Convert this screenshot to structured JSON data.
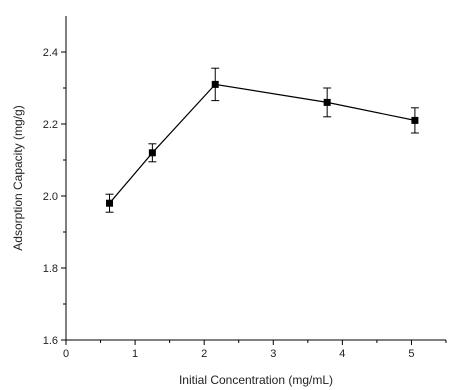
{
  "chart_data": {
    "type": "line",
    "title": "",
    "xlabel": "Initial Concentration (mg/mL)",
    "ylabel": "Adsorption Capacity (mg/g)",
    "xlim": [
      0,
      5.5
    ],
    "ylim": [
      1.6,
      2.5
    ],
    "x_ticks": [
      "0",
      "1",
      "2",
      "3",
      "4",
      "5"
    ],
    "y_ticks": [
      "1.6",
      "1.8",
      "2.0",
      "2.2",
      "2.4"
    ],
    "grid": false,
    "series": [
      {
        "x": [
          0.63,
          1.25,
          2.16,
          3.78,
          5.05
        ],
        "y": [
          1.98,
          2.12,
          2.31,
          2.26,
          2.21
        ],
        "error": [
          0.025,
          0.025,
          0.045,
          0.04,
          0.035
        ],
        "marker": "square",
        "color": "#000000"
      }
    ]
  }
}
